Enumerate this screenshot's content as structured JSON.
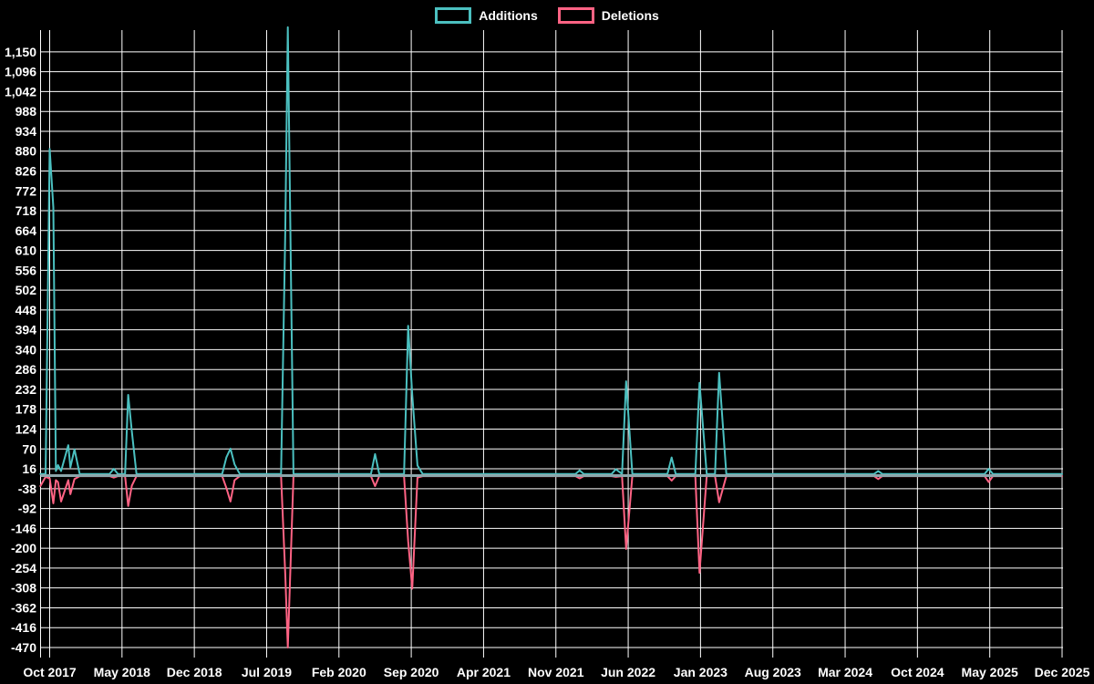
{
  "colors": {
    "background": "#000000",
    "grid": "#ffffff",
    "text": "#ffffff",
    "additions": "#4bc0c0",
    "deletions": "#ff6384",
    "baseline_blend": "#8ca6ab"
  },
  "chart_data": {
    "type": "line",
    "title": "",
    "legend_position": "top-center",
    "grid": true,
    "legend": [
      {
        "label": "Additions",
        "color": "#4bc0c0"
      },
      {
        "label": "Deletions",
        "color": "#ff6384"
      }
    ],
    "x_axis": {
      "label": "",
      "tick_labels": [
        "Oct 2017",
        "May 2018",
        "Dec 2018",
        "Jul 2019",
        "Feb 2020",
        "Sep 2020",
        "Apr 2021",
        "Nov 2021",
        "Jun 2022",
        "Jan 2023",
        "Aug 2023",
        "Mar 2024",
        "Oct 2024",
        "May 2025",
        "Dec 2025"
      ],
      "tick_interval_months": 7,
      "months_span": 98,
      "x_unit": "months_since_Oct_2017"
    },
    "y_axis": {
      "label": "",
      "tick_step": 54,
      "min": -470,
      "max": 1204,
      "tick_values": [
        1150,
        1096,
        1042,
        988,
        934,
        880,
        826,
        772,
        718,
        664,
        610,
        556,
        502,
        448,
        394,
        340,
        286,
        232,
        178,
        124,
        70,
        16,
        -38,
        -92,
        -146,
        -200,
        -254,
        -308,
        -362,
        -416,
        -470
      ]
    },
    "series": [
      {
        "name": "Additions",
        "color": "#4bc0c0",
        "points": [
          [
            -0.9,
            2
          ],
          [
            -0.4,
            2
          ],
          [
            0,
            886
          ],
          [
            0.35,
            727
          ],
          [
            0.6,
            10
          ],
          [
            0.8,
            26
          ],
          [
            1.1,
            10
          ],
          [
            1.8,
            80
          ],
          [
            2.0,
            20
          ],
          [
            2.4,
            69
          ],
          [
            2.9,
            2
          ],
          [
            5.8,
            2
          ],
          [
            6.2,
            16
          ],
          [
            6.6,
            2
          ],
          [
            7.3,
            2
          ],
          [
            7.6,
            217
          ],
          [
            7.95,
            118
          ],
          [
            8.4,
            2
          ],
          [
            16.7,
            2
          ],
          [
            17.1,
            47
          ],
          [
            17.5,
            71
          ],
          [
            17.9,
            28
          ],
          [
            18.4,
            2
          ],
          [
            22.4,
            2
          ],
          [
            22.8,
            660
          ],
          [
            23.05,
            1217
          ],
          [
            23.6,
            2
          ],
          [
            31.1,
            2
          ],
          [
            31.5,
            56
          ],
          [
            31.9,
            2
          ],
          [
            34.3,
            2
          ],
          [
            34.7,
            405
          ],
          [
            35.1,
            217
          ],
          [
            35.6,
            25
          ],
          [
            36.1,
            2
          ],
          [
            50.9,
            2
          ],
          [
            51.3,
            12
          ],
          [
            51.7,
            2
          ],
          [
            54.4,
            2
          ],
          [
            54.8,
            15
          ],
          [
            55.4,
            2
          ],
          [
            55.8,
            254
          ],
          [
            56.4,
            2
          ],
          [
            59.8,
            2
          ],
          [
            60.2,
            47
          ],
          [
            60.6,
            2
          ],
          [
            62.5,
            2
          ],
          [
            62.9,
            250
          ],
          [
            63.6,
            2
          ],
          [
            64.4,
            2
          ],
          [
            64.8,
            277
          ],
          [
            65.5,
            2
          ],
          [
            79.8,
            2
          ],
          [
            80.2,
            10
          ],
          [
            80.6,
            2
          ],
          [
            90.5,
            2
          ],
          [
            90.9,
            16
          ],
          [
            91.3,
            2
          ],
          [
            98,
            2
          ]
        ]
      },
      {
        "name": "Deletions",
        "color": "#ff6384",
        "points": [
          [
            -0.9,
            -31
          ],
          [
            -0.4,
            -6
          ],
          [
            0,
            -10
          ],
          [
            0.35,
            -78
          ],
          [
            0.6,
            -15
          ],
          [
            0.8,
            -20
          ],
          [
            1.1,
            -73
          ],
          [
            1.8,
            -15
          ],
          [
            2.0,
            -53
          ],
          [
            2.4,
            -12
          ],
          [
            2.9,
            -4
          ],
          [
            5.8,
            -4
          ],
          [
            6.2,
            -8
          ],
          [
            6.6,
            -4
          ],
          [
            7.3,
            -4
          ],
          [
            7.6,
            -85
          ],
          [
            7.95,
            -30
          ],
          [
            8.4,
            -4
          ],
          [
            16.7,
            -4
          ],
          [
            17.1,
            -36
          ],
          [
            17.5,
            -73
          ],
          [
            17.9,
            -15
          ],
          [
            18.4,
            -4
          ],
          [
            22.4,
            -4
          ],
          [
            22.8,
            -270
          ],
          [
            23.05,
            -470
          ],
          [
            23.6,
            -4
          ],
          [
            31.1,
            -4
          ],
          [
            31.5,
            -31
          ],
          [
            31.9,
            -4
          ],
          [
            34.3,
            -4
          ],
          [
            34.7,
            -180
          ],
          [
            35.1,
            -310
          ],
          [
            35.6,
            -8
          ],
          [
            36.1,
            -4
          ],
          [
            50.9,
            -4
          ],
          [
            51.3,
            -10
          ],
          [
            51.7,
            -4
          ],
          [
            54.4,
            -4
          ],
          [
            54.8,
            -6
          ],
          [
            55.4,
            -4
          ],
          [
            55.8,
            -202
          ],
          [
            56.4,
            -4
          ],
          [
            59.8,
            -4
          ],
          [
            60.2,
            -16
          ],
          [
            60.6,
            -4
          ],
          [
            62.5,
            -4
          ],
          [
            62.9,
            -267
          ],
          [
            63.6,
            -4
          ],
          [
            64.4,
            -4
          ],
          [
            64.8,
            -75
          ],
          [
            65.5,
            -4
          ],
          [
            79.8,
            -4
          ],
          [
            80.2,
            -12
          ],
          [
            80.6,
            -4
          ],
          [
            90.5,
            -4
          ],
          [
            90.9,
            -20
          ],
          [
            91.3,
            -4
          ],
          [
            98,
            -4
          ]
        ]
      }
    ]
  }
}
